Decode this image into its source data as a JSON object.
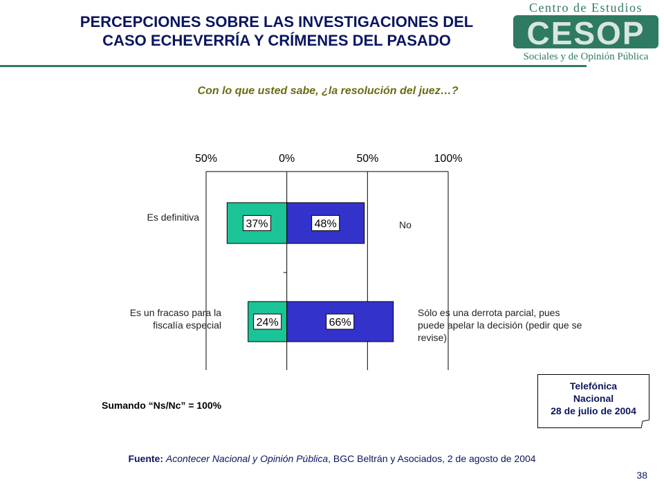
{
  "slide": {
    "title_line1": "PERCEPCIONES SOBRE LAS INVESTIGACIONES DEL",
    "title_line2": "CASO ECHEVERRÍA Y CRÍMENES DEL PASADO",
    "question": "Con lo que usted sabe, ¿la resolución del juez…?",
    "summing_note": "Sumando “Ns/Nc” = 100%",
    "page_number": "38"
  },
  "logo": {
    "line1": "Centro de Estudios",
    "mark": "CESOP",
    "line3": "Sociales y de Opinión Pública"
  },
  "note_box": {
    "line1": "Telefónica",
    "line2": "Nacional",
    "line3": "28 de julio de 2004"
  },
  "source": {
    "label": "Fuente:",
    "italic": "Acontecer Nacional y Opinión Pública",
    "rest": ", BGC Beltrán y Asociados, 2 de agosto de 2004"
  },
  "colors": {
    "left_bar": "#1bc496",
    "right_bar": "#3333cc",
    "title": "#0a1560",
    "question": "#6b6b14",
    "logo": "#2e7a62"
  },
  "chart_data": {
    "type": "bar",
    "orientation": "horizontal-diverging",
    "x_ticks": [
      "50%",
      "0%",
      "50%",
      "100%"
    ],
    "xlim": [
      -50,
      100
    ],
    "rows": [
      {
        "left_label": "Es definitiva",
        "right_label": "No",
        "left_value": 37,
        "right_value": 48,
        "left_text": "37%",
        "right_text": "48%"
      },
      {
        "left_label": "Es un fracaso para la fiscalía especial",
        "right_label": "Sólo es una derrota parcial, pues puede apelar la decisión (pedir que se revise)",
        "left_value": 24,
        "right_value": 66,
        "left_text": "24%",
        "right_text": "66%"
      }
    ]
  }
}
